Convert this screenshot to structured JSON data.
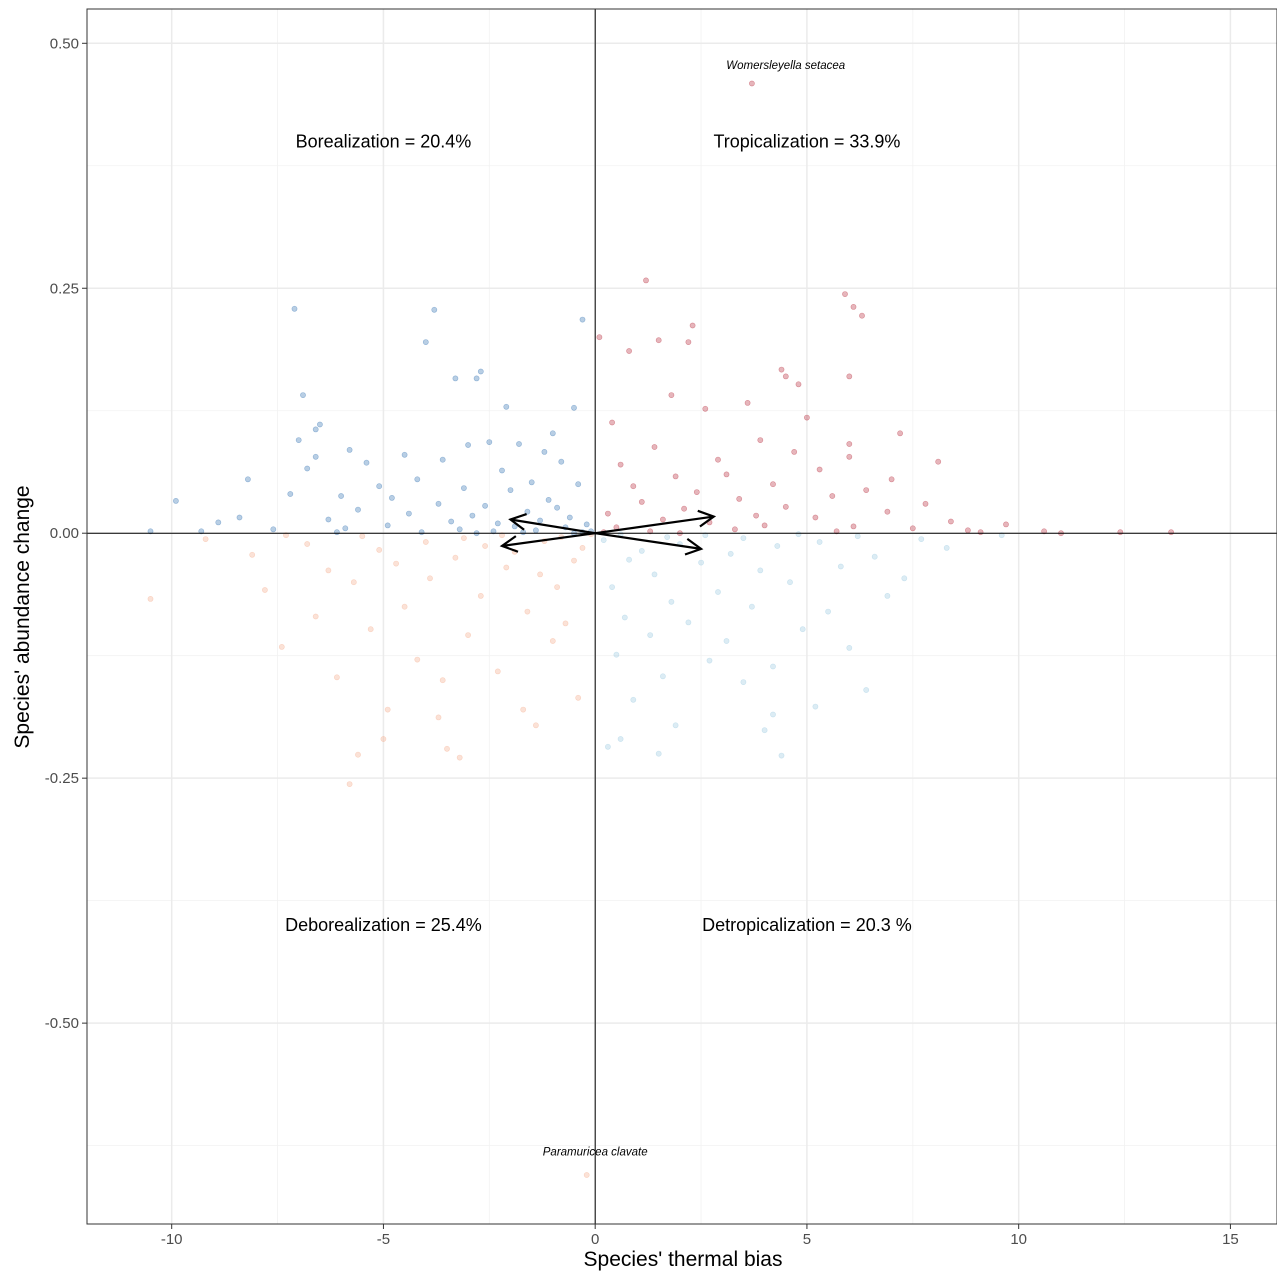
{
  "chart_data": {
    "type": "scatter",
    "xlabel": "Species' thermal bias",
    "ylabel": "Species' abundance change",
    "xlim": [
      -12.0,
      16.1
    ],
    "ylim": [
      -0.705,
      0.535
    ],
    "x_ticks": [
      {
        "value": -10,
        "label": "-10"
      },
      {
        "value": -5,
        "label": "-5"
      },
      {
        "value": 0,
        "label": "0"
      },
      {
        "value": 5,
        "label": "5"
      },
      {
        "value": 10,
        "label": "10"
      },
      {
        "value": 15,
        "label": "15"
      }
    ],
    "y_ticks": [
      {
        "value": 0.5,
        "label": "0.50"
      },
      {
        "value": 0.25,
        "label": "0.25"
      },
      {
        "value": 0.0,
        "label": "0.00"
      },
      {
        "value": -0.25,
        "label": "-0.25"
      },
      {
        "value": -0.5,
        "label": "-0.50"
      }
    ],
    "grid": true,
    "reference_lines": {
      "x": 0,
      "y": 0
    },
    "colors": {
      "borealization": "#2166ac",
      "tropicalization": "#b2182b",
      "deborealization": "#f4a582",
      "detropicalization": "#92c5de"
    },
    "quadrant_labels": [
      {
        "name": "Borealization",
        "value": "= 20.4%",
        "x": -5.0,
        "y": 0.4
      },
      {
        "name": "Tropicalization",
        "value": "= 33.9%",
        "x": 5.0,
        "y": 0.4
      },
      {
        "name": "Deborealization",
        "value": "= 25.4%",
        "x": -5.0,
        "y": -0.4
      },
      {
        "name": "Detropicalization",
        "value": "= 20.3 %",
        "x": 5.0,
        "y": -0.4
      }
    ],
    "species_labels": [
      {
        "text": "Womersleyella setacea",
        "x": 4.5,
        "y": 0.478
      },
      {
        "text": "Paramuricea clavate",
        "x": 0.0,
        "y": -0.631
      }
    ],
    "arrows": [
      {
        "x0": 0,
        "y0": 0,
        "x1": 2.8,
        "y1": 0.017
      },
      {
        "x0": 0,
        "y0": 0,
        "x1": -2.0,
        "y1": 0.014
      },
      {
        "x0": 0,
        "y0": 0,
        "x1": 2.5,
        "y1": -0.016
      },
      {
        "x0": 0,
        "y0": 0,
        "x1": -2.2,
        "y1": -0.013
      }
    ],
    "series": [
      {
        "group": "borealization",
        "points": [
          [
            -7.1,
            0.229
          ],
          [
            -3.8,
            0.228
          ],
          [
            -0.3,
            0.218
          ],
          [
            -4.0,
            0.195
          ],
          [
            -2.7,
            0.165
          ],
          [
            -2.8,
            0.158
          ],
          [
            -3.3,
            0.158
          ],
          [
            -6.9,
            0.141
          ],
          [
            -2.1,
            0.129
          ],
          [
            -0.5,
            0.128
          ],
          [
            -6.5,
            0.111
          ],
          [
            -6.6,
            0.106
          ],
          [
            -1.0,
            0.102
          ],
          [
            -7.0,
            0.095
          ],
          [
            -2.5,
            0.093
          ],
          [
            -1.8,
            0.091
          ],
          [
            -3.0,
            0.09
          ],
          [
            -5.8,
            0.085
          ],
          [
            -1.2,
            0.083
          ],
          [
            -4.5,
            0.08
          ],
          [
            -6.6,
            0.078
          ],
          [
            -3.6,
            0.075
          ],
          [
            -0.8,
            0.073
          ],
          [
            -5.4,
            0.072
          ],
          [
            -6.8,
            0.066
          ],
          [
            -2.2,
            0.064
          ],
          [
            -8.2,
            0.055
          ],
          [
            -4.2,
            0.055
          ],
          [
            -1.5,
            0.052
          ],
          [
            -0.4,
            0.05
          ],
          [
            -5.1,
            0.048
          ],
          [
            -3.1,
            0.046
          ],
          [
            -2.0,
            0.044
          ],
          [
            -7.2,
            0.04
          ],
          [
            -6.0,
            0.038
          ],
          [
            -4.8,
            0.036
          ],
          [
            -1.1,
            0.034
          ],
          [
            -9.9,
            0.033
          ],
          [
            -3.7,
            0.03
          ],
          [
            -2.6,
            0.028
          ],
          [
            -0.9,
            0.026
          ],
          [
            -5.6,
            0.024
          ],
          [
            -1.6,
            0.022
          ],
          [
            -4.4,
            0.02
          ],
          [
            -2.9,
            0.018
          ],
          [
            -0.6,
            0.016
          ],
          [
            -8.4,
            0.016
          ],
          [
            -6.3,
            0.014
          ],
          [
            -1.3,
            0.013
          ],
          [
            -3.4,
            0.012
          ],
          [
            -8.9,
            0.011
          ],
          [
            -2.3,
            0.01
          ],
          [
            -0.2,
            0.009
          ],
          [
            -4.9,
            0.008
          ],
          [
            -1.9,
            0.007
          ],
          [
            -0.7,
            0.006
          ],
          [
            -5.9,
            0.005
          ],
          [
            -3.2,
            0.004
          ],
          [
            -7.6,
            0.004
          ],
          [
            -1.4,
            0.003
          ],
          [
            -10.5,
            0.002
          ],
          [
            -9.3,
            0.002
          ],
          [
            -2.4,
            0.002
          ],
          [
            -0.1,
            0.002
          ],
          [
            -4.1,
            0.001
          ],
          [
            -1.7,
            0.001
          ],
          [
            -6.1,
            0.001
          ],
          [
            -0.3,
            0.001
          ],
          [
            -2.8,
            0.0
          ],
          [
            -0.5,
            0.0
          ]
        ]
      },
      {
        "group": "tropicalization",
        "points": [
          [
            3.7,
            0.459
          ],
          [
            1.2,
            0.258
          ],
          [
            5.9,
            0.244
          ],
          [
            6.1,
            0.231
          ],
          [
            6.3,
            0.222
          ],
          [
            2.3,
            0.212
          ],
          [
            0.1,
            0.2
          ],
          [
            2.2,
            0.195
          ],
          [
            1.5,
            0.197
          ],
          [
            0.8,
            0.186
          ],
          [
            4.4,
            0.167
          ],
          [
            4.5,
            0.16
          ],
          [
            6.0,
            0.16
          ],
          [
            4.8,
            0.152
          ],
          [
            1.8,
            0.141
          ],
          [
            3.6,
            0.133
          ],
          [
            2.6,
            0.127
          ],
          [
            5.0,
            0.118
          ],
          [
            0.4,
            0.113
          ],
          [
            7.2,
            0.102
          ],
          [
            3.9,
            0.095
          ],
          [
            6.0,
            0.091
          ],
          [
            1.4,
            0.088
          ],
          [
            4.7,
            0.083
          ],
          [
            6.0,
            0.078
          ],
          [
            2.9,
            0.075
          ],
          [
            8.1,
            0.073
          ],
          [
            0.6,
            0.07
          ],
          [
            5.3,
            0.065
          ],
          [
            3.1,
            0.06
          ],
          [
            1.9,
            0.058
          ],
          [
            7.0,
            0.055
          ],
          [
            4.2,
            0.05
          ],
          [
            0.9,
            0.048
          ],
          [
            6.4,
            0.044
          ],
          [
            2.4,
            0.042
          ],
          [
            5.6,
            0.038
          ],
          [
            3.4,
            0.035
          ],
          [
            1.1,
            0.032
          ],
          [
            7.8,
            0.03
          ],
          [
            4.5,
            0.027
          ],
          [
            2.1,
            0.025
          ],
          [
            6.9,
            0.022
          ],
          [
            0.3,
            0.02
          ],
          [
            3.8,
            0.018
          ],
          [
            5.2,
            0.016
          ],
          [
            1.6,
            0.014
          ],
          [
            8.4,
            0.012
          ],
          [
            2.7,
            0.011
          ],
          [
            9.7,
            0.009
          ],
          [
            4.0,
            0.008
          ],
          [
            6.1,
            0.007
          ],
          [
            0.5,
            0.006
          ],
          [
            7.5,
            0.005
          ],
          [
            3.3,
            0.004
          ],
          [
            8.8,
            0.003
          ],
          [
            10.6,
            0.002
          ],
          [
            12.4,
            0.001
          ],
          [
            13.6,
            0.001
          ],
          [
            1.3,
            0.002
          ],
          [
            5.7,
            0.002
          ],
          [
            9.1,
            0.001
          ],
          [
            0.2,
            0.001
          ],
          [
            11.0,
            0.0
          ],
          [
            2.0,
            0.0
          ]
        ]
      },
      {
        "group": "deborealization",
        "points": [
          [
            -0.2,
            -0.655
          ],
          [
            -5.8,
            -0.256
          ],
          [
            -3.2,
            -0.229
          ],
          [
            -5.6,
            -0.226
          ],
          [
            -3.5,
            -0.22
          ],
          [
            -1.4,
            -0.196
          ],
          [
            -3.7,
            -0.188
          ],
          [
            -5.0,
            -0.21
          ],
          [
            -4.9,
            -0.18
          ],
          [
            -1.7,
            -0.18
          ],
          [
            -0.4,
            -0.168
          ],
          [
            -3.6,
            -0.15
          ],
          [
            -6.1,
            -0.147
          ],
          [
            -2.3,
            -0.141
          ],
          [
            -4.2,
            -0.129
          ],
          [
            -7.4,
            -0.116
          ],
          [
            -1.0,
            -0.11
          ],
          [
            -3.0,
            -0.104
          ],
          [
            -5.3,
            -0.098
          ],
          [
            -0.7,
            -0.092
          ],
          [
            -6.6,
            -0.085
          ],
          [
            -1.6,
            -0.08
          ],
          [
            -4.5,
            -0.075
          ],
          [
            -10.5,
            -0.067
          ],
          [
            -2.7,
            -0.064
          ],
          [
            -7.8,
            -0.058
          ],
          [
            -0.9,
            -0.055
          ],
          [
            -5.7,
            -0.05
          ],
          [
            -3.9,
            -0.046
          ],
          [
            -1.3,
            -0.042
          ],
          [
            -6.3,
            -0.038
          ],
          [
            -2.1,
            -0.035
          ],
          [
            -4.7,
            -0.031
          ],
          [
            -0.5,
            -0.028
          ],
          [
            -3.3,
            -0.025
          ],
          [
            -8.1,
            -0.022
          ],
          [
            -1.9,
            -0.019
          ],
          [
            -5.1,
            -0.017
          ],
          [
            -0.3,
            -0.015
          ],
          [
            -2.6,
            -0.013
          ],
          [
            -6.8,
            -0.011
          ],
          [
            -4.0,
            -0.009
          ],
          [
            -1.2,
            -0.008
          ],
          [
            -9.2,
            -0.006
          ],
          [
            -3.1,
            -0.005
          ],
          [
            -0.8,
            -0.004
          ],
          [
            -5.5,
            -0.003
          ],
          [
            -2.2,
            -0.002
          ],
          [
            -7.3,
            -0.002
          ],
          [
            -0.1,
            -0.001
          ]
        ]
      },
      {
        "group": "detropicalization",
        "points": [
          [
            4.4,
            -0.227
          ],
          [
            1.5,
            -0.225
          ],
          [
            0.3,
            -0.218
          ],
          [
            0.6,
            -0.21
          ],
          [
            4.0,
            -0.201
          ],
          [
            1.9,
            -0.196
          ],
          [
            4.2,
            -0.185
          ],
          [
            5.2,
            -0.177
          ],
          [
            0.9,
            -0.17
          ],
          [
            6.4,
            -0.16
          ],
          [
            3.5,
            -0.152
          ],
          [
            1.6,
            -0.146
          ],
          [
            4.2,
            -0.136
          ],
          [
            2.7,
            -0.13
          ],
          [
            0.5,
            -0.124
          ],
          [
            6.0,
            -0.117
          ],
          [
            3.1,
            -0.11
          ],
          [
            1.3,
            -0.104
          ],
          [
            4.9,
            -0.098
          ],
          [
            2.2,
            -0.091
          ],
          [
            0.7,
            -0.086
          ],
          [
            5.5,
            -0.08
          ],
          [
            3.7,
            -0.075
          ],
          [
            1.8,
            -0.07
          ],
          [
            6.9,
            -0.064
          ],
          [
            2.9,
            -0.06
          ],
          [
            0.4,
            -0.055
          ],
          [
            4.6,
            -0.05
          ],
          [
            7.3,
            -0.046
          ],
          [
            1.4,
            -0.042
          ],
          [
            3.9,
            -0.038
          ],
          [
            5.8,
            -0.034
          ],
          [
            2.5,
            -0.03
          ],
          [
            0.8,
            -0.027
          ],
          [
            6.6,
            -0.024
          ],
          [
            3.2,
            -0.021
          ],
          [
            1.1,
            -0.018
          ],
          [
            8.3,
            -0.015
          ],
          [
            4.3,
            -0.013
          ],
          [
            2.0,
            -0.011
          ],
          [
            5.3,
            -0.009
          ],
          [
            0.2,
            -0.007
          ],
          [
            7.7,
            -0.006
          ],
          [
            3.5,
            -0.005
          ],
          [
            1.7,
            -0.004
          ],
          [
            6.2,
            -0.003
          ],
          [
            9.6,
            -0.002
          ],
          [
            2.6,
            -0.002
          ],
          [
            4.8,
            -0.001
          ],
          [
            0.6,
            -0.001
          ]
        ]
      }
    ]
  }
}
